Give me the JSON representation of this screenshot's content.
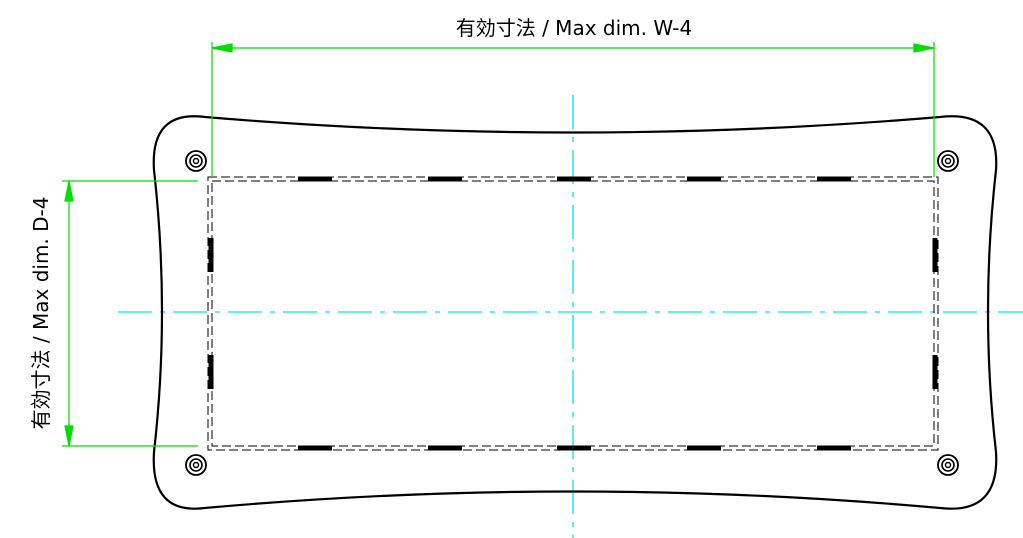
{
  "dimensions": {
    "width_label": "有効寸法 / Max dim. W-4",
    "depth_label": "有効寸法 / Max dim. D-4"
  },
  "colors": {
    "outline": "#000000",
    "dimension": "#00dd00",
    "centerline": "#00e5ee",
    "background": "#ffffff"
  }
}
